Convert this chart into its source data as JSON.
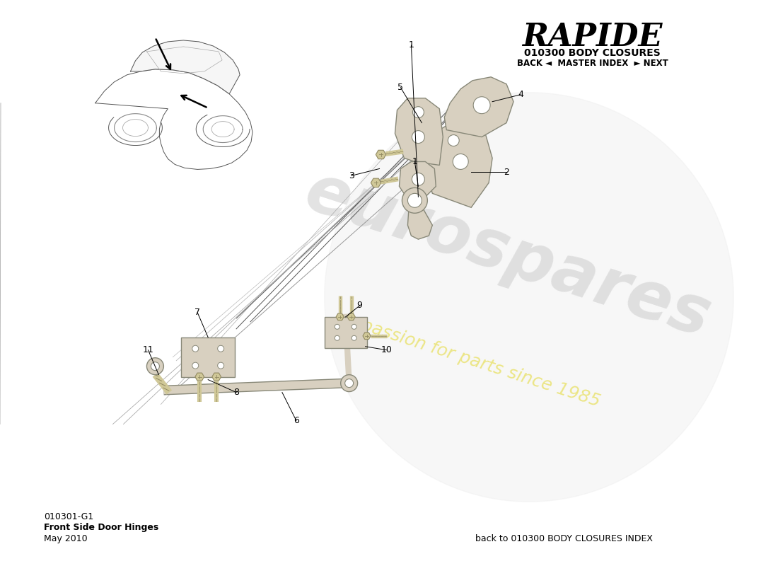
{
  "title": "RAPIDE",
  "subtitle": "010300 BODY CLOSURES",
  "nav": "BACK ◄  MASTER INDEX  ► NEXT",
  "part_id": "010301-G1",
  "part_name": "Front Side Door Hinges",
  "date": "May 2010",
  "footer_right": "back to 010300 BODY CLOSURES INDEX",
  "bg_color": "#ffffff",
  "wm_text1": "eurospares",
  "wm_text2": "a passion for parts since 1985",
  "part_color": "#d8d0c0",
  "part_edge": "#888878",
  "bolt_color": "#d0c898",
  "bolt_edge": "#908860"
}
